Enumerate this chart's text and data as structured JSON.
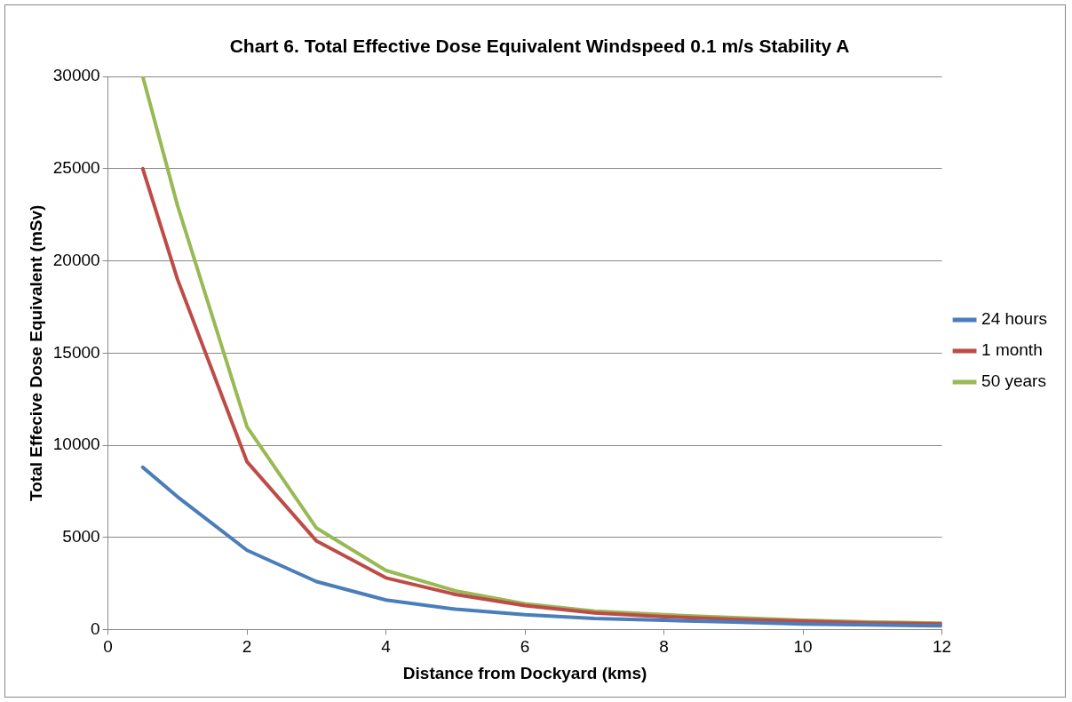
{
  "chart_data": {
    "type": "line",
    "title": "Chart 6. Total Effective Dose Equivalent Windspeed 0.1 m/s Stability A",
    "xlabel": "Distance from Dockyard (kms)",
    "ylabel": "Total Effecive Dose Equivalent (mSv)",
    "x": [
      0.5,
      1,
      2,
      3,
      4,
      5,
      6,
      7,
      8,
      9,
      10,
      11,
      12
    ],
    "series": [
      {
        "name": "24 hours",
        "color": "#4a7ebb",
        "values": [
          8800,
          7200,
          4300,
          2600,
          1600,
          1100,
          800,
          600,
          500,
          400,
          300,
          250,
          200
        ]
      },
      {
        "name": "1 month",
        "color": "#be4b48",
        "values": [
          25000,
          19000,
          9100,
          4800,
          2800,
          1900,
          1300,
          900,
          700,
          550,
          450,
          350,
          300
        ]
      },
      {
        "name": "50 years",
        "color": "#98b954",
        "values": [
          30000,
          23000,
          11000,
          5500,
          3200,
          2100,
          1400,
          1000,
          800,
          650,
          500,
          400,
          350
        ]
      }
    ],
    "xlim": [
      0,
      12
    ],
    "xticks": [
      0,
      2,
      4,
      6,
      8,
      10,
      12
    ],
    "ylim": [
      0,
      30000
    ],
    "yticks": [
      0,
      5000,
      10000,
      15000,
      20000,
      25000,
      30000
    ],
    "grid": "y",
    "legend": "right",
    "marker": "none",
    "line_style": "solid"
  }
}
